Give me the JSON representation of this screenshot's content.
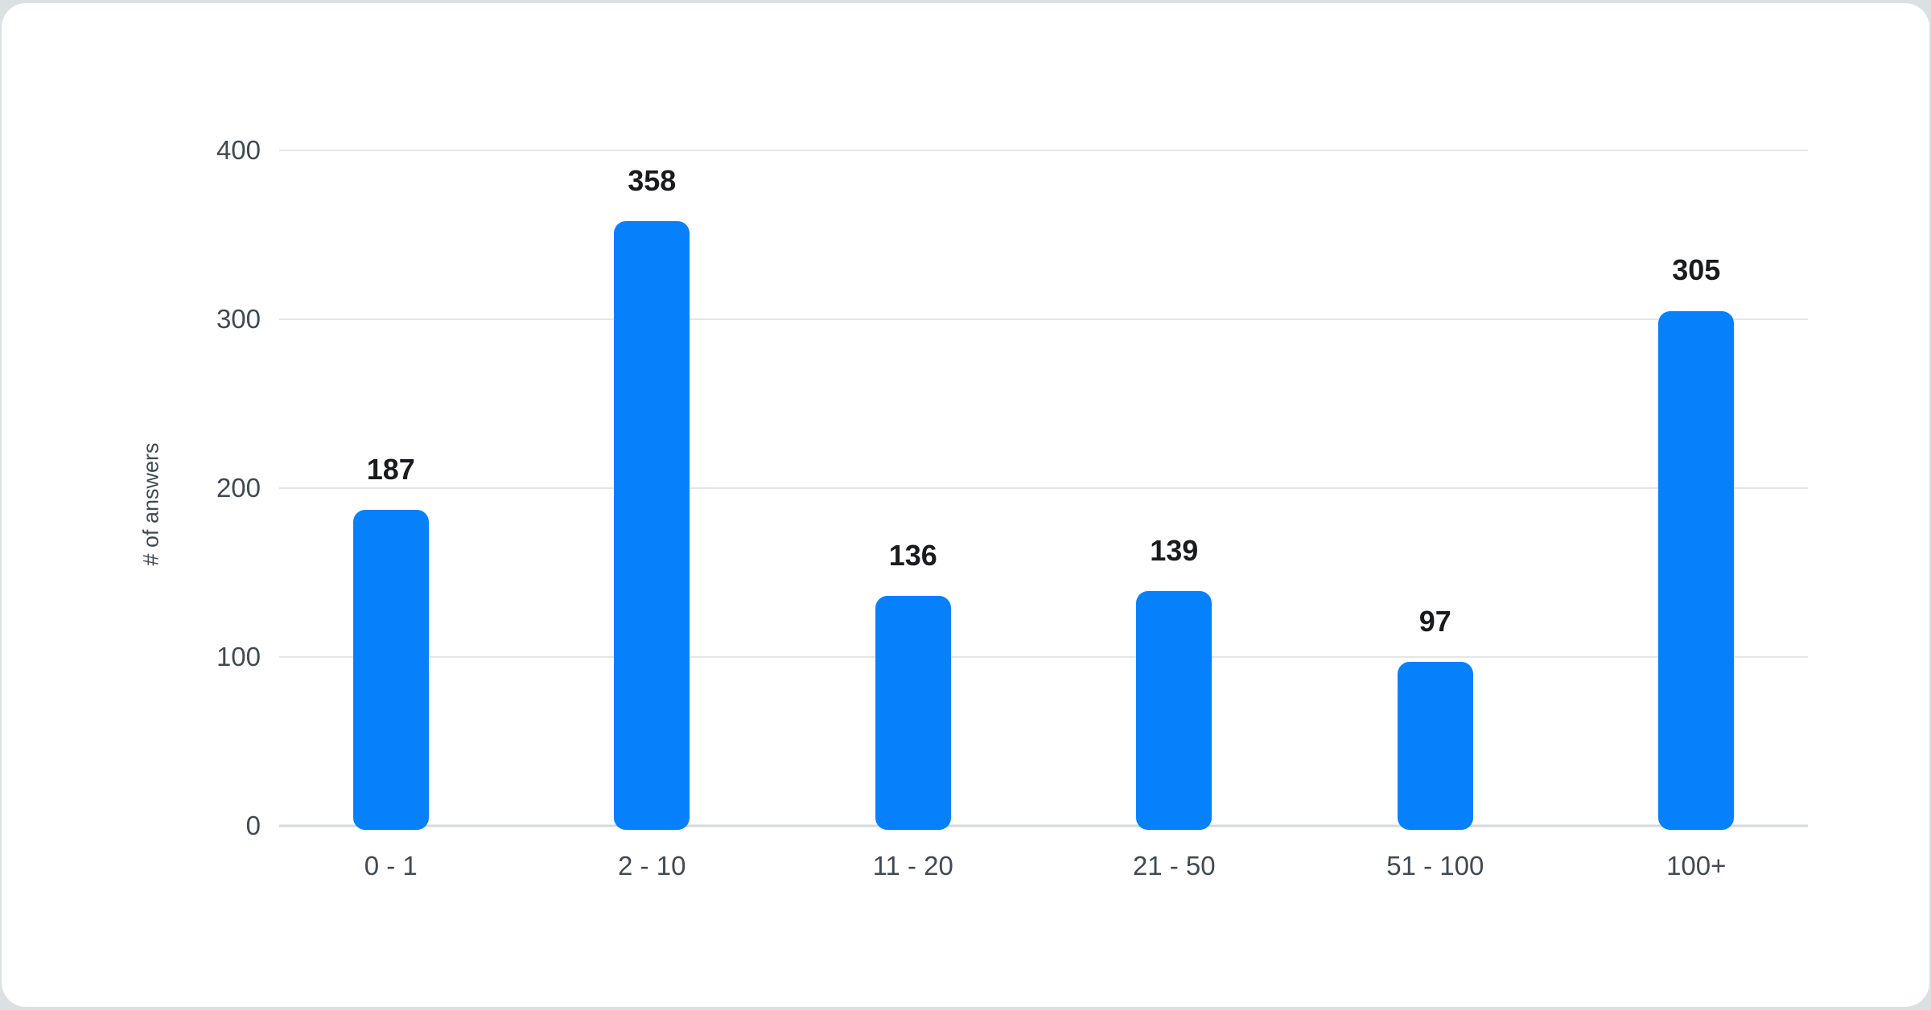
{
  "chart_data": {
    "type": "bar",
    "categories": [
      "0 - 1",
      "2 - 10",
      "11 - 20",
      "21 - 50",
      "51 - 100",
      "100+"
    ],
    "values": [
      187,
      358,
      136,
      139,
      97,
      305
    ],
    "data_labels": [
      "187",
      "358",
      "136",
      "139",
      "97",
      "305"
    ],
    "title": "",
    "xlabel": "",
    "ylabel": "# of answers",
    "ylim": [
      0,
      400
    ],
    "yticks": [
      0,
      100,
      200,
      300,
      400
    ],
    "ytick_labels": [
      "0",
      "100",
      "200",
      "300",
      "400"
    ],
    "grid": true,
    "legend": false,
    "colors": {
      "bar": "#0781fb",
      "value_label": "#191b1e",
      "axis_label": "#3f4a54",
      "gridline": "#e3e6e9",
      "baseline": "#d5d9dd",
      "card_background": "#ffffff",
      "page_background": "#dbe0e3"
    }
  }
}
